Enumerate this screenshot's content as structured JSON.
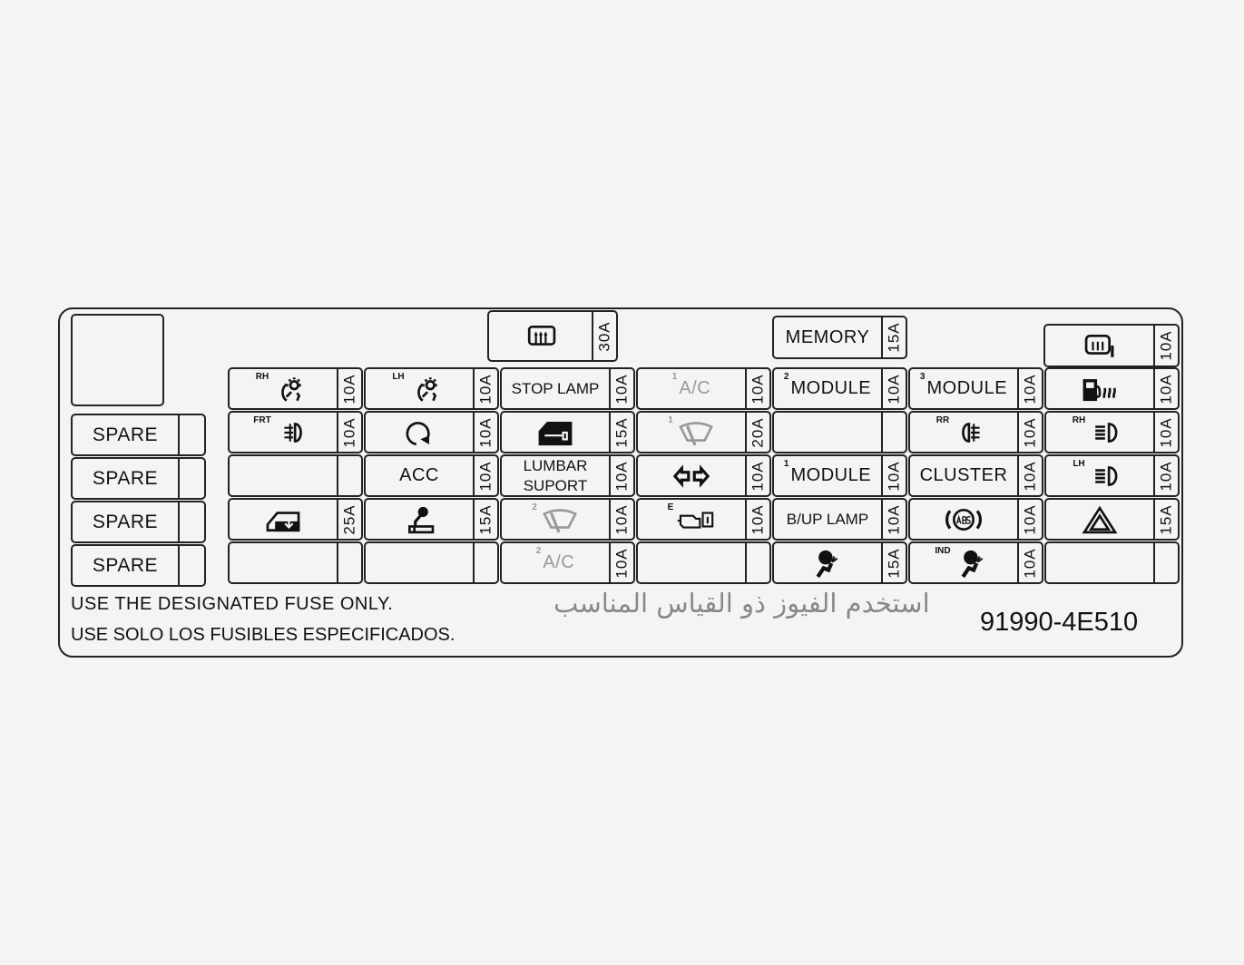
{
  "top_fuses": [
    {
      "icon": "rear-defroster-icon",
      "rating": "30A"
    },
    {
      "label": "MEMORY",
      "rating": "15A"
    },
    {
      "icon": "mirror-heater-icon",
      "rating": "10A"
    }
  ],
  "spares": [
    {
      "label": "SPARE"
    },
    {
      "label": "SPARE"
    },
    {
      "label": "SPARE"
    },
    {
      "label": "SPARE"
    }
  ],
  "grid": [
    [
      {
        "sup": "RH",
        "icon": "cluster-illumination-icon",
        "rating": "10A"
      },
      {
        "sup": "LH",
        "icon": "cluster-illumination-icon",
        "rating": "10A"
      },
      {
        "label": "STOP LAMP",
        "rating": "10A"
      },
      {
        "sup": "1",
        "label": "A/C",
        "rating": "10A",
        "gray": true
      },
      {
        "sup": "2",
        "label": "MODULE",
        "rating": "10A"
      },
      {
        "sup": "3",
        "label": "MODULE",
        "rating": "10A"
      },
      {
        "icon": "fuel-heater-icon",
        "rating": "10A"
      }
    ],
    [
      {
        "sup": "FRT",
        "icon": "front-fog-lamp-icon",
        "rating": "10A"
      },
      {
        "icon": "rotation-arrow-icon",
        "rating": "10A"
      },
      {
        "icon": "door-lock-icon",
        "rating": "15A"
      },
      {
        "sup": "1",
        "icon": "wiper-icon",
        "rating": "20A",
        "gray": true
      },
      {
        "rating": ""
      },
      {
        "sup": "RR",
        "icon": "rear-fog-lamp-icon",
        "rating": "10A"
      },
      {
        "sup": "RH",
        "icon": "headlamp-icon",
        "rating": "10A"
      }
    ],
    [
      {
        "rating": ""
      },
      {
        "label": "ACC",
        "rating": "10A"
      },
      {
        "label": "LUMBAR SUPORT",
        "rating": "10A"
      },
      {
        "icon": "turn-signal-icon",
        "rating": "10A"
      },
      {
        "sup": "1",
        "label": "MODULE",
        "rating": "10A"
      },
      {
        "label": "CLUSTER",
        "rating": "10A"
      },
      {
        "sup": "LH",
        "icon": "headlamp-icon",
        "rating": "10A"
      }
    ],
    [
      {
        "icon": "power-window-icon",
        "rating": "25A"
      },
      {
        "icon": "cigar-lighter-icon",
        "rating": "15A"
      },
      {
        "sup": "2",
        "icon": "wiper-icon",
        "rating": "10A",
        "gray": true
      },
      {
        "sup": "E",
        "icon": "engine-manual-icon",
        "rating": "10A"
      },
      {
        "label": "B/UP LAMP",
        "rating": "10A"
      },
      {
        "icon": "abs-icon",
        "rating": "10A"
      },
      {
        "icon": "hazard-icon",
        "rating": "15A"
      }
    ],
    [
      {
        "rating": ""
      },
      {
        "rating": ""
      },
      {
        "sup": "2",
        "label": "A/C",
        "rating": "10A",
        "gray": true
      },
      {
        "rating": ""
      },
      {
        "icon": "airbag-icon",
        "rating": "15A"
      },
      {
        "sup": "IND",
        "icon": "airbag-icon",
        "rating": "10A"
      },
      {
        "rating": ""
      }
    ]
  ],
  "footer": {
    "english": "USE THE DESIGNATED FUSE ONLY.",
    "spanish": "USE SOLO LOS FUSIBLES ESPECIFICADOS.",
    "arabic": "استخدم الفيوز ذو القياس المناسب",
    "part_number": "91990-4E510"
  }
}
